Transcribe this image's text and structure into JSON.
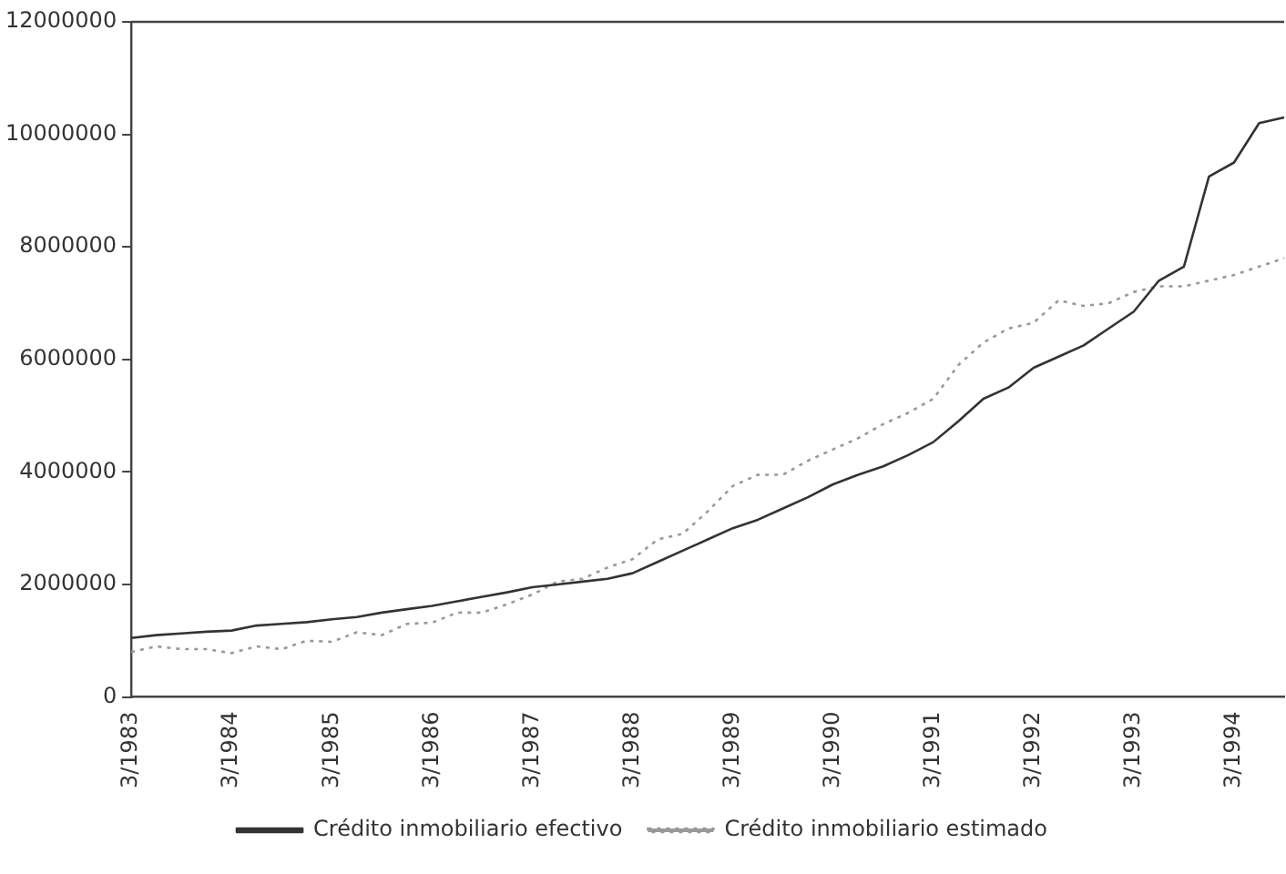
{
  "chart_data": {
    "type": "line",
    "categories": [
      "3/1983",
      null,
      null,
      null,
      "3/1984",
      null,
      null,
      null,
      "3/1985",
      null,
      null,
      null,
      "3/1986",
      null,
      null,
      null,
      "3/1987",
      null,
      null,
      null,
      "3/1988",
      null,
      null,
      null,
      "3/1989",
      null,
      null,
      null,
      "3/1990",
      null,
      null,
      null,
      "3/1991",
      null,
      null,
      null,
      "3/1992",
      null,
      null,
      null,
      "3/1993",
      null,
      null,
      null,
      "3/1994",
      null,
      null
    ],
    "series": [
      {
        "name": "Crédito inmobiliario efectivo",
        "color": "#333333",
        "line_style": "solid",
        "values": [
          1050000,
          1100000,
          1130000,
          1160000,
          1180000,
          1270000,
          1300000,
          1330000,
          1380000,
          1420000,
          1500000,
          1560000,
          1620000,
          1700000,
          1780000,
          1860000,
          1950000,
          2000000,
          2050000,
          2100000,
          2200000,
          2400000,
          2600000,
          2800000,
          3000000,
          3150000,
          3350000,
          3550000,
          3780000,
          3950000,
          4100000,
          4300000,
          4530000,
          4900000,
          5300000,
          5500000,
          5850000,
          6050000,
          6250000,
          6550000,
          6850000,
          7400000,
          7650000,
          9250000,
          9500000,
          10200000,
          10300000
        ]
      },
      {
        "name": "Crédito inmobiliario estimado",
        "color": "#999999",
        "line_style": "dotted",
        "values": [
          800000,
          900000,
          850000,
          850000,
          780000,
          900000,
          850000,
          1000000,
          980000,
          1150000,
          1100000,
          1300000,
          1320000,
          1500000,
          1500000,
          1650000,
          1820000,
          2050000,
          2100000,
          2300000,
          2450000,
          2800000,
          2900000,
          3300000,
          3750000,
          3950000,
          3950000,
          4200000,
          4400000,
          4600000,
          4850000,
          5050000,
          5300000,
          5900000,
          6300000,
          6550000,
          6650000,
          7050000,
          6950000,
          7000000,
          7200000,
          7300000,
          7300000,
          7400000,
          7500000,
          7650000,
          7800000
        ]
      }
    ],
    "ylim": [
      0,
      12000000
    ],
    "yticks": [
      0,
      2000000,
      4000000,
      6000000,
      8000000,
      10000000,
      12000000
    ],
    "grid": false,
    "legend": "bottom",
    "marker": "none"
  }
}
